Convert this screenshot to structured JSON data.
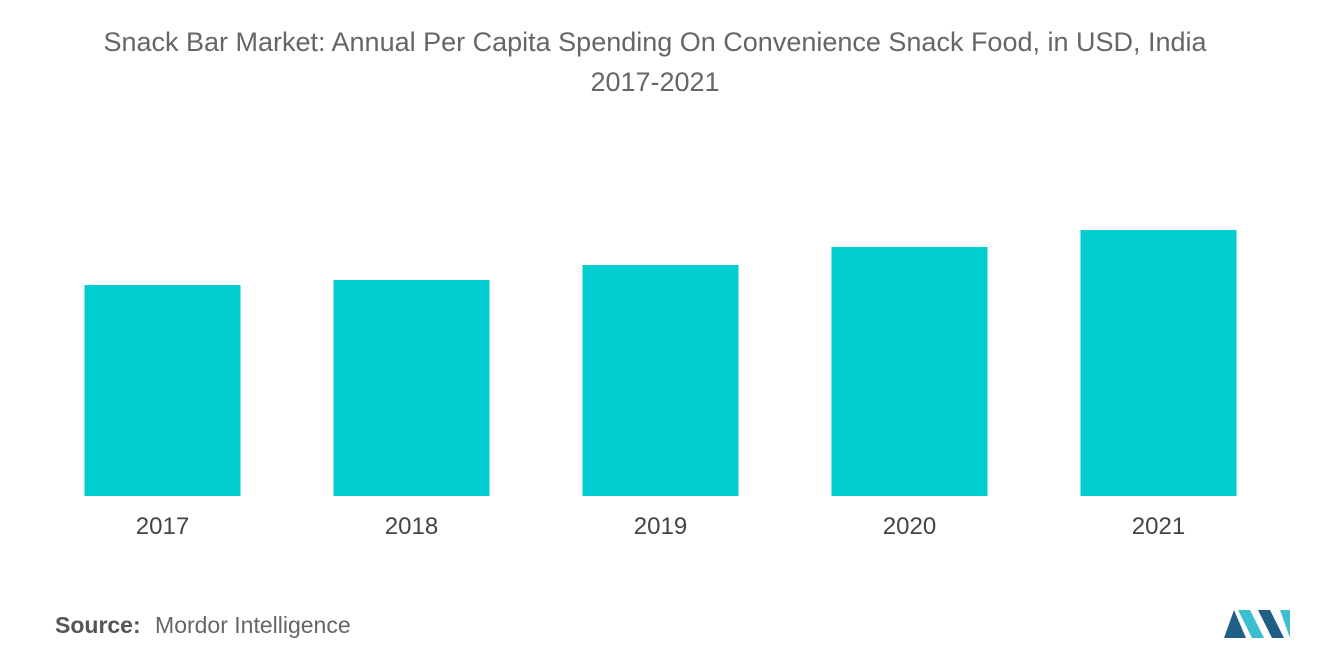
{
  "title_line1": "Snack Bar Market: Annual Per Capita Spending On Convenience Snack Food, in USD, India",
  "title_line2": "2017-2021",
  "source": {
    "label": "Source:",
    "text": "Mordor Intelligence"
  },
  "colors": {
    "bar": "#00CED1",
    "title_text": "#666666",
    "logo_dark": "#1f5f86",
    "logo_light": "#3bbfd0"
  },
  "chart_data": {
    "type": "bar",
    "title": "Snack Bar Market: Annual Per Capita Spending On Convenience Snack Food, in USD, India 2017-2021",
    "categories": [
      "2017",
      "2018",
      "2019",
      "2020",
      "2021"
    ],
    "values": [
      211,
      216,
      231,
      249,
      266
    ],
    "ylim": [
      0,
      300
    ],
    "xlabel": "",
    "ylabel": "",
    "grid": false,
    "legend": "none",
    "value_note": "relative bar heights; no value axis shown"
  }
}
